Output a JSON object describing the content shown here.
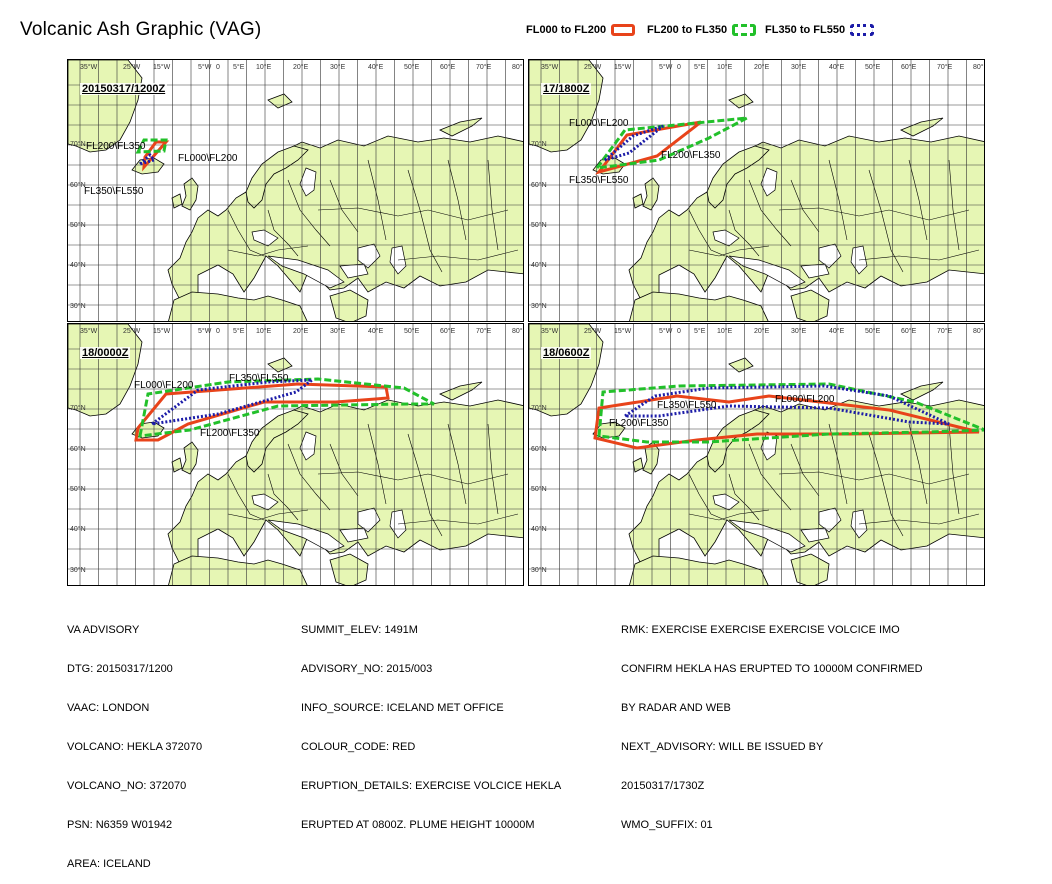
{
  "title": "Volcanic Ash Graphic (VAG)",
  "legend": [
    {
      "label": "FL000 to FL200",
      "color": "#e8431a",
      "style": "solid"
    },
    {
      "label": "FL200 to FL350",
      "color": "#22c02a",
      "style": "dashed"
    },
    {
      "label": "FL350 to FL550",
      "color": "#1c1ca8",
      "style": "dotted"
    }
  ],
  "map": {
    "lon_labels": [
      "35°W",
      "25°W",
      "15°W",
      "5°W",
      "0",
      "5°E",
      "10°E",
      "20°E",
      "30°E",
      "40°E",
      "50°E",
      "60°E",
      "70°E",
      "80°E"
    ],
    "lat_labels": [
      "70°N",
      "60°N",
      "50°N",
      "40°N",
      "30°N"
    ],
    "land_color": "#e6f6b4",
    "sea_color": "#ffffff"
  },
  "panels": [
    {
      "time": "20150317/1200Z",
      "labels": [
        "FL200\\FL350",
        "FL000\\FL200",
        "FL350\\FL550"
      ]
    },
    {
      "time": "17/1800Z",
      "labels": [
        "FL000\\FL200",
        "FL200\\FL350",
        "FL350\\FL550"
      ]
    },
    {
      "time": "18/0000Z",
      "labels": [
        "FL000\\FL200",
        "FL350\\FL550",
        "FL200\\FL350"
      ]
    },
    {
      "time": "18/0600Z",
      "labels": [
        "FL350\\FL550",
        "FL000\\FL200",
        "FL200\\FL350"
      ]
    }
  ],
  "advisory": {
    "col1": [
      "VA ADVISORY",
      "DTG: 20150317/1200",
      "VAAC: LONDON",
      "VOLCANO: HEKLA 372070",
      "VOLCANO_NO: 372070",
      "PSN: N6359 W01942",
      "AREA: ICELAND"
    ],
    "col2": [
      "SUMMIT_ELEV: 1491M",
      "ADVISORY_NO: 2015/003",
      "INFO_SOURCE: ICELAND MET OFFICE",
      "COLOUR_CODE: RED",
      "ERUPTION_DETAILS: EXERCISE VOLCICE HEKLA",
      "ERUPTED AT 0800Z. PLUME HEIGHT 10000M"
    ],
    "col3": [
      "RMK: EXERCISE EXERCISE EXERCISE VOLCICE IMO",
      "CONFIRM HEKLA HAS ERUPTED TO 10000M CONFIRMED",
      "BY RADAR AND WEB",
      "NEXT_ADVISORY: WILL BE ISSUED BY",
      "20150317/1730Z",
      "WMO_SUFFIX: 01"
    ]
  }
}
